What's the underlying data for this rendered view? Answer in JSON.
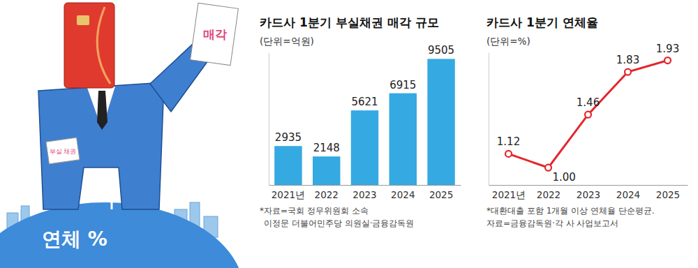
{
  "illustration": {
    "labels": [
      "매각",
      "부실 채권",
      "연체 %"
    ]
  },
  "chart_data": [
    {
      "type": "bar",
      "title": "카드사 1분기 부실채권 매각 규모",
      "subtitle": "(단위=억원)",
      "categories": [
        "2021년",
        "2022",
        "2023",
        "2024",
        "2025"
      ],
      "values": [
        2935,
        2148,
        5621,
        6915,
        9505
      ],
      "color": "#35a9e1",
      "ylim": [
        0,
        10000
      ],
      "data_labels": true,
      "tick_labels": "x",
      "annotations": [
        "*자료=국회 정무위원회 소속",
        "이정문 더불어민주당 의원실·금융감독원"
      ]
    },
    {
      "type": "line",
      "title": "카드사 1분기 연체율",
      "subtitle": "(단위=%)",
      "categories": [
        "2021년",
        "2022",
        "2023",
        "2024",
        "2025"
      ],
      "values": [
        1.12,
        1.0,
        1.46,
        1.83,
        1.93
      ],
      "value_labels": [
        "1.12",
        "1.00",
        "1.46",
        "1.83",
        "1.93"
      ],
      "color": "#e4262b",
      "marker": "circle",
      "ylim": [
        0.85,
        2.0
      ],
      "data_labels": true,
      "tick_labels": "x",
      "annotations": [
        "*대환대출 포함 1개월 이상 연체율 단순평균.",
        "자료=금융감독원·각 사 사업보고서"
      ]
    }
  ]
}
